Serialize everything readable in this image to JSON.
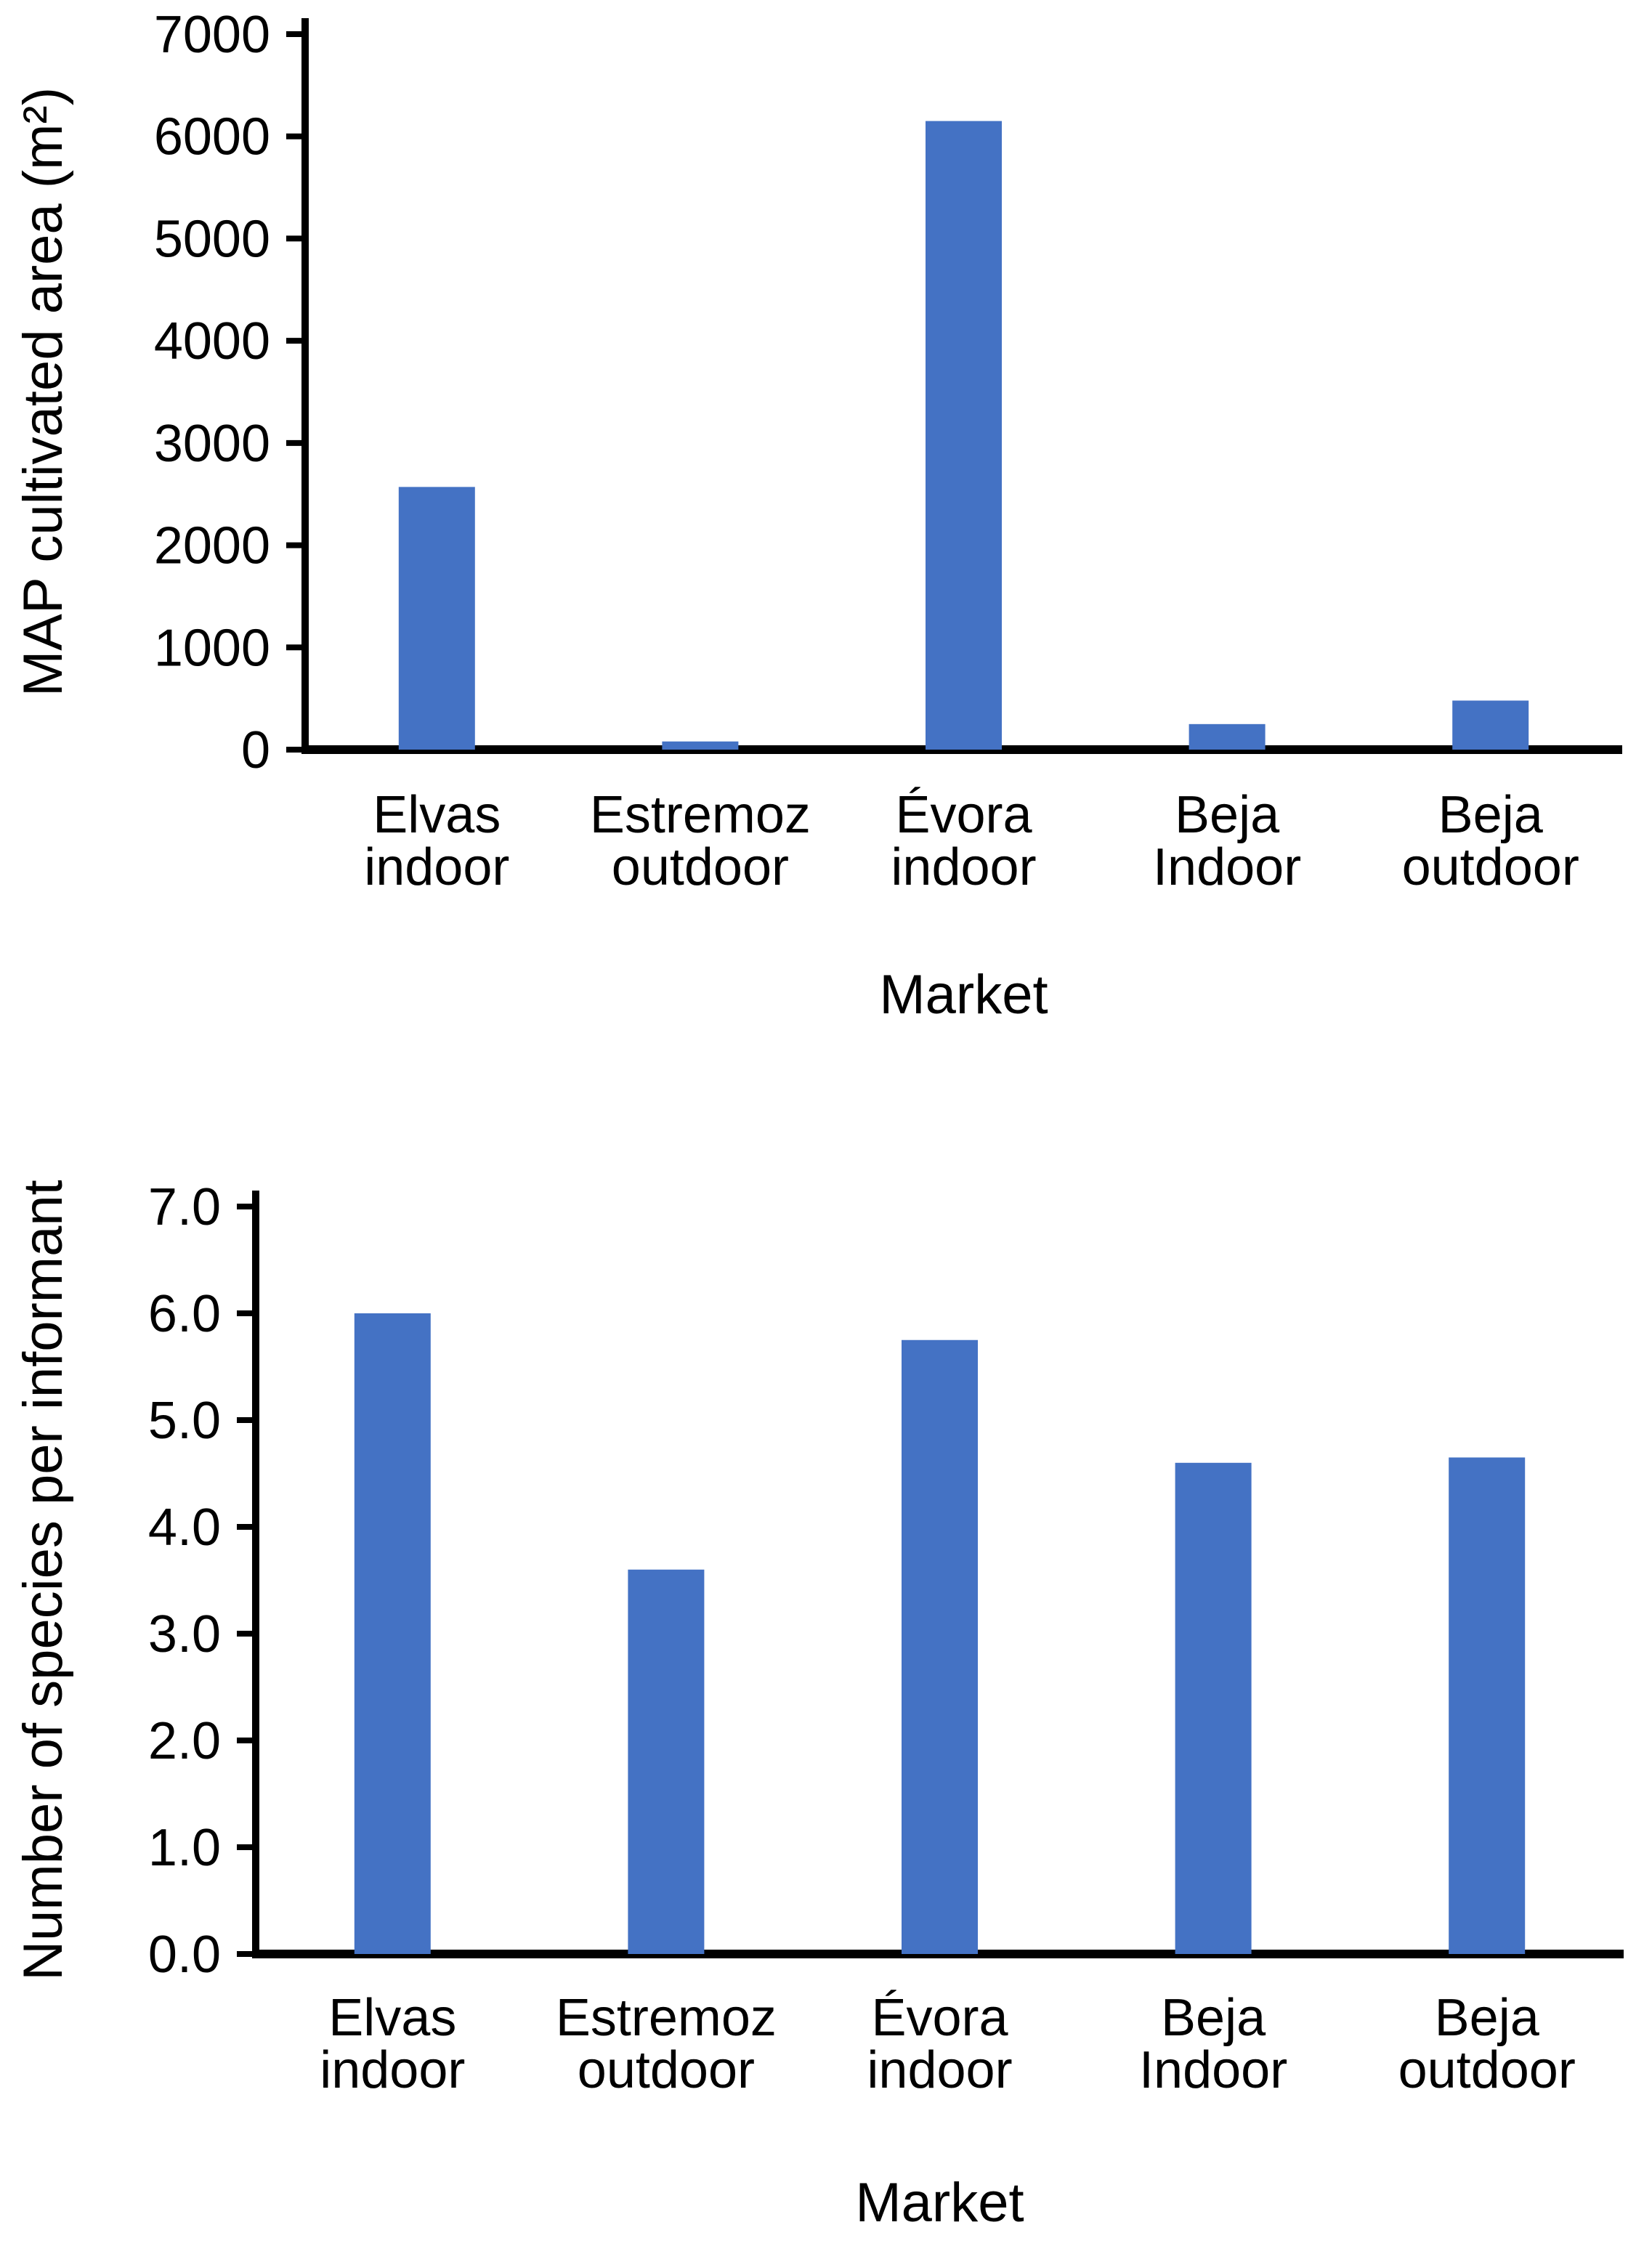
{
  "figure": {
    "background": "#ffffff",
    "description": "Two vertical bar charts stacked, markets study"
  },
  "chart_data": [
    {
      "type": "bar",
      "title": "",
      "categories": [
        "Elvas indoor",
        "Estremoz outdoor",
        "Évora indoor",
        "Beja Indoor",
        "Beja outdoor"
      ],
      "values": [
        2570,
        80,
        6150,
        250,
        480
      ],
      "xlabel": "Market",
      "ylabel": "MAP cultivated area (m²)",
      "ylim": [
        0,
        7000
      ],
      "ytick_values": [
        0,
        1000,
        2000,
        3000,
        4000,
        5000,
        6000,
        7000
      ],
      "ytick_labels": [
        "0",
        "1000",
        "2000",
        "3000",
        "4000",
        "5000",
        "6000",
        "7000"
      ],
      "grid": false,
      "legend": "none",
      "bar_color": "#4472C4",
      "axis_color": "#000000"
    },
    {
      "type": "bar",
      "title": "",
      "categories": [
        "Elvas indoor",
        "Estremoz outdoor",
        "Évora indoor",
        "Beja Indoor",
        "Beja outdoor"
      ],
      "values": [
        6.0,
        3.6,
        5.75,
        4.6,
        4.65
      ],
      "xlabel": "Market",
      "ylabel": "Number of species per informant",
      "ylim": [
        0,
        7
      ],
      "ytick_values": [
        0,
        1,
        2,
        3,
        4,
        5,
        6,
        7
      ],
      "ytick_labels": [
        "0.0",
        "1.0",
        "2.0",
        "3.0",
        "4.0",
        "5.0",
        "6.0",
        "7.0"
      ],
      "grid": false,
      "legend": "none",
      "bar_color": "#4472C4",
      "axis_color": "#000000"
    }
  ]
}
